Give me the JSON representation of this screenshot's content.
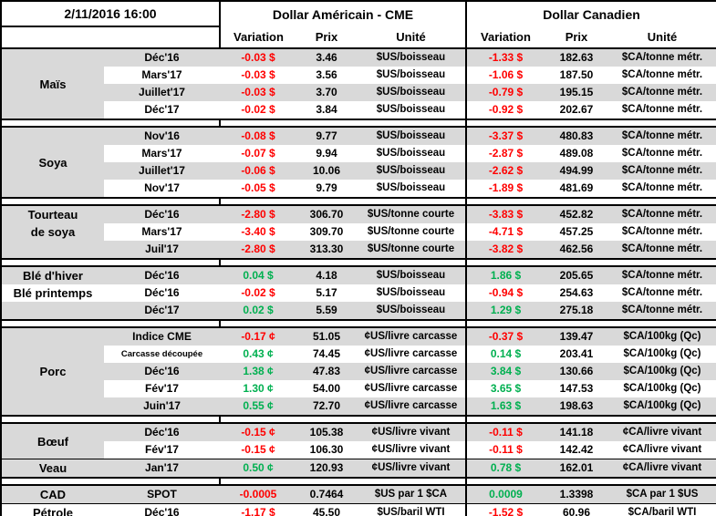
{
  "meta": {
    "timestamp": "2/11/2016 16:00"
  },
  "colors": {
    "negative": "#ff0000",
    "positive": "#00b050",
    "stripe": "#d9d9d9",
    "border": "#000000"
  },
  "headers": {
    "us_section": "Dollar Américain - CME",
    "ca_section": "Dollar Canadien",
    "variation": "Variation",
    "prix": "Prix",
    "unite": "Unité"
  },
  "groups": [
    {
      "labels": [
        {
          "lines": [
            "Maïs"
          ],
          "span": 4
        }
      ],
      "rows": [
        {
          "month": "Déc'16",
          "us_variation": "-0.03 $",
          "us_prix": "3.46",
          "us_unite": "$US/boisseau",
          "ca_variation": "-1.33 $",
          "ca_prix": "182.63",
          "ca_unite": "$CA/tonne métr."
        },
        {
          "month": "Mars'17",
          "us_variation": "-0.03 $",
          "us_prix": "3.56",
          "us_unite": "$US/boisseau",
          "ca_variation": "-1.06 $",
          "ca_prix": "187.50",
          "ca_unite": "$CA/tonne métr."
        },
        {
          "month": "Juillet'17",
          "us_variation": "-0.03 $",
          "us_prix": "3.70",
          "us_unite": "$US/boisseau",
          "ca_variation": "-0.79 $",
          "ca_prix": "195.15",
          "ca_unite": "$CA/tonne métr."
        },
        {
          "month": "Déc'17",
          "us_variation": "-0.02 $",
          "us_prix": "3.84",
          "us_unite": "$US/boisseau",
          "ca_variation": "-0.92 $",
          "ca_prix": "202.67",
          "ca_unite": "$CA/tonne métr."
        }
      ]
    },
    {
      "labels": [
        {
          "lines": [
            "Soya"
          ],
          "span": 4
        }
      ],
      "rows": [
        {
          "month": "Nov'16",
          "us_variation": "-0.08 $",
          "us_prix": "9.77",
          "us_unite": "$US/boisseau",
          "ca_variation": "-3.37 $",
          "ca_prix": "480.83",
          "ca_unite": "$CA/tonne métr."
        },
        {
          "month": "Mars'17",
          "us_variation": "-0.07 $",
          "us_prix": "9.94",
          "us_unite": "$US/boisseau",
          "ca_variation": "-2.87 $",
          "ca_prix": "489.08",
          "ca_unite": "$CA/tonne métr."
        },
        {
          "month": "Juillet'17",
          "us_variation": "-0.06 $",
          "us_prix": "10.06",
          "us_unite": "$US/boisseau",
          "ca_variation": "-2.62 $",
          "ca_prix": "494.99",
          "ca_unite": "$CA/tonne métr."
        },
        {
          "month": "Nov'17",
          "us_variation": "-0.05 $",
          "us_prix": "9.79",
          "us_unite": "$US/boisseau",
          "ca_variation": "-1.89 $",
          "ca_prix": "481.69",
          "ca_unite": "$CA/tonne métr."
        }
      ]
    },
    {
      "labels": [
        {
          "lines": [
            "Tourteau",
            "de soya"
          ],
          "span": 3
        }
      ],
      "rows": [
        {
          "month": "Déc'16",
          "us_variation": "-2.80 $",
          "us_prix": "306.70",
          "us_unite": "$US/tonne courte",
          "ca_variation": "-3.83 $",
          "ca_prix": "452.82",
          "ca_unite": "$CA/tonne métr."
        },
        {
          "month": "Mars'17",
          "us_variation": "-3.40 $",
          "us_prix": "309.70",
          "us_unite": "$US/tonne courte",
          "ca_variation": "-4.71 $",
          "ca_prix": "457.25",
          "ca_unite": "$CA/tonne métr."
        },
        {
          "month": "Juil'17",
          "us_variation": "-2.80 $",
          "us_prix": "313.30",
          "us_unite": "$US/tonne courte",
          "ca_variation": "-3.82 $",
          "ca_prix": "462.56",
          "ca_unite": "$CA/tonne métr."
        }
      ]
    },
    {
      "labels": [
        {
          "lines": [
            "Blé d'hiver"
          ],
          "span": 1
        },
        {
          "lines": [
            "Blé printemps"
          ],
          "span": 1
        },
        {
          "lines": [
            ""
          ],
          "span": 1
        }
      ],
      "rows": [
        {
          "month": "Déc'16",
          "us_variation": "0.04 $",
          "us_prix": "4.18",
          "us_unite": "$US/boisseau",
          "ca_variation": "1.86 $",
          "ca_prix": "205.65",
          "ca_unite": "$CA/tonne métr."
        },
        {
          "month": "Déc'16",
          "us_variation": "-0.02 $",
          "us_prix": "5.17",
          "us_unite": "$US/boisseau",
          "ca_variation": "-0.94 $",
          "ca_prix": "254.63",
          "ca_unite": "$CA/tonne métr."
        },
        {
          "month": "Déc'17",
          "us_variation": "0.02 $",
          "us_prix": "5.59",
          "us_unite": "$US/boisseau",
          "ca_variation": "1.29 $",
          "ca_prix": "275.18",
          "ca_unite": "$CA/tonne métr."
        }
      ]
    },
    {
      "labels": [
        {
          "lines": [
            "Porc"
          ],
          "span": 5
        }
      ],
      "rows": [
        {
          "month": "Indice CME",
          "us_variation": "-0.17 ¢",
          "us_prix": "51.05",
          "us_unite": "¢US/livre carcasse",
          "ca_variation": "-0.37 $",
          "ca_prix": "139.47",
          "ca_unite": "$CA/100kg (Qc)"
        },
        {
          "month": "Carcasse découpée",
          "us_variation": "0.43 ¢",
          "us_prix": "74.45",
          "us_unite": "¢US/livre carcasse",
          "ca_variation": "0.14 $",
          "ca_prix": "203.41",
          "ca_unite": "$CA/100kg (Qc)"
        },
        {
          "month": "Déc'16",
          "us_variation": "1.38 ¢",
          "us_prix": "47.83",
          "us_unite": "¢US/livre carcasse",
          "ca_variation": "3.84 $",
          "ca_prix": "130.66",
          "ca_unite": "$CA/100kg (Qc)"
        },
        {
          "month": "Fév'17",
          "us_variation": "1.30 ¢",
          "us_prix": "54.00",
          "us_unite": "¢US/livre carcasse",
          "ca_variation": "3.65 $",
          "ca_prix": "147.53",
          "ca_unite": "$CA/100kg (Qc)"
        },
        {
          "month": "Juin'17",
          "us_variation": "0.55 ¢",
          "us_prix": "72.70",
          "us_unite": "¢US/livre carcasse",
          "ca_variation": "1.63 $",
          "ca_prix": "198.63",
          "ca_unite": "$CA/100kg (Qc)"
        }
      ]
    },
    {
      "labels": [
        {
          "lines": [
            "Bœuf"
          ],
          "span": 2
        },
        {
          "lines": [
            "Veau"
          ],
          "span": 1
        }
      ],
      "rows": [
        {
          "month": "Déc'16",
          "us_variation": "-0.15 ¢",
          "us_prix": "105.38",
          "us_unite": "¢US/livre vivant",
          "ca_variation": "-0.11 $",
          "ca_prix": "141.18",
          "ca_unite": "¢CA/livre vivant"
        },
        {
          "month": "Fév'17",
          "us_variation": "-0.15 ¢",
          "us_prix": "106.30",
          "us_unite": "¢US/livre vivant",
          "ca_variation": "-0.11 $",
          "ca_prix": "142.42",
          "ca_unite": "¢CA/livre vivant"
        },
        {
          "month": "Jan'17",
          "us_variation": "0.50 ¢",
          "us_prix": "120.93",
          "us_unite": "¢US/livre vivant",
          "ca_variation": "0.78 $",
          "ca_prix": "162.01",
          "ca_unite": "¢CA/livre vivant",
          "rule_above": true
        }
      ]
    },
    {
      "labels": [
        {
          "lines": [
            "CAD"
          ],
          "span": 1
        },
        {
          "lines": [
            "Pétrole"
          ],
          "span": 1
        }
      ],
      "rows": [
        {
          "month": "SPOT",
          "us_variation": "-0.0005",
          "us_prix": "0.7464",
          "us_unite": "$US par 1 $CA",
          "ca_variation": "0.0009",
          "ca_prix": "1.3398",
          "ca_unite": "$CA par 1 $US"
        },
        {
          "month": "Déc'16",
          "us_variation": "-1.17 $",
          "us_prix": "45.50",
          "us_unite": "$US/baril WTI",
          "ca_variation": "-1.52 $",
          "ca_prix": "60.96",
          "ca_unite": "$CA/baril WTI",
          "rule_above": true
        }
      ]
    }
  ]
}
